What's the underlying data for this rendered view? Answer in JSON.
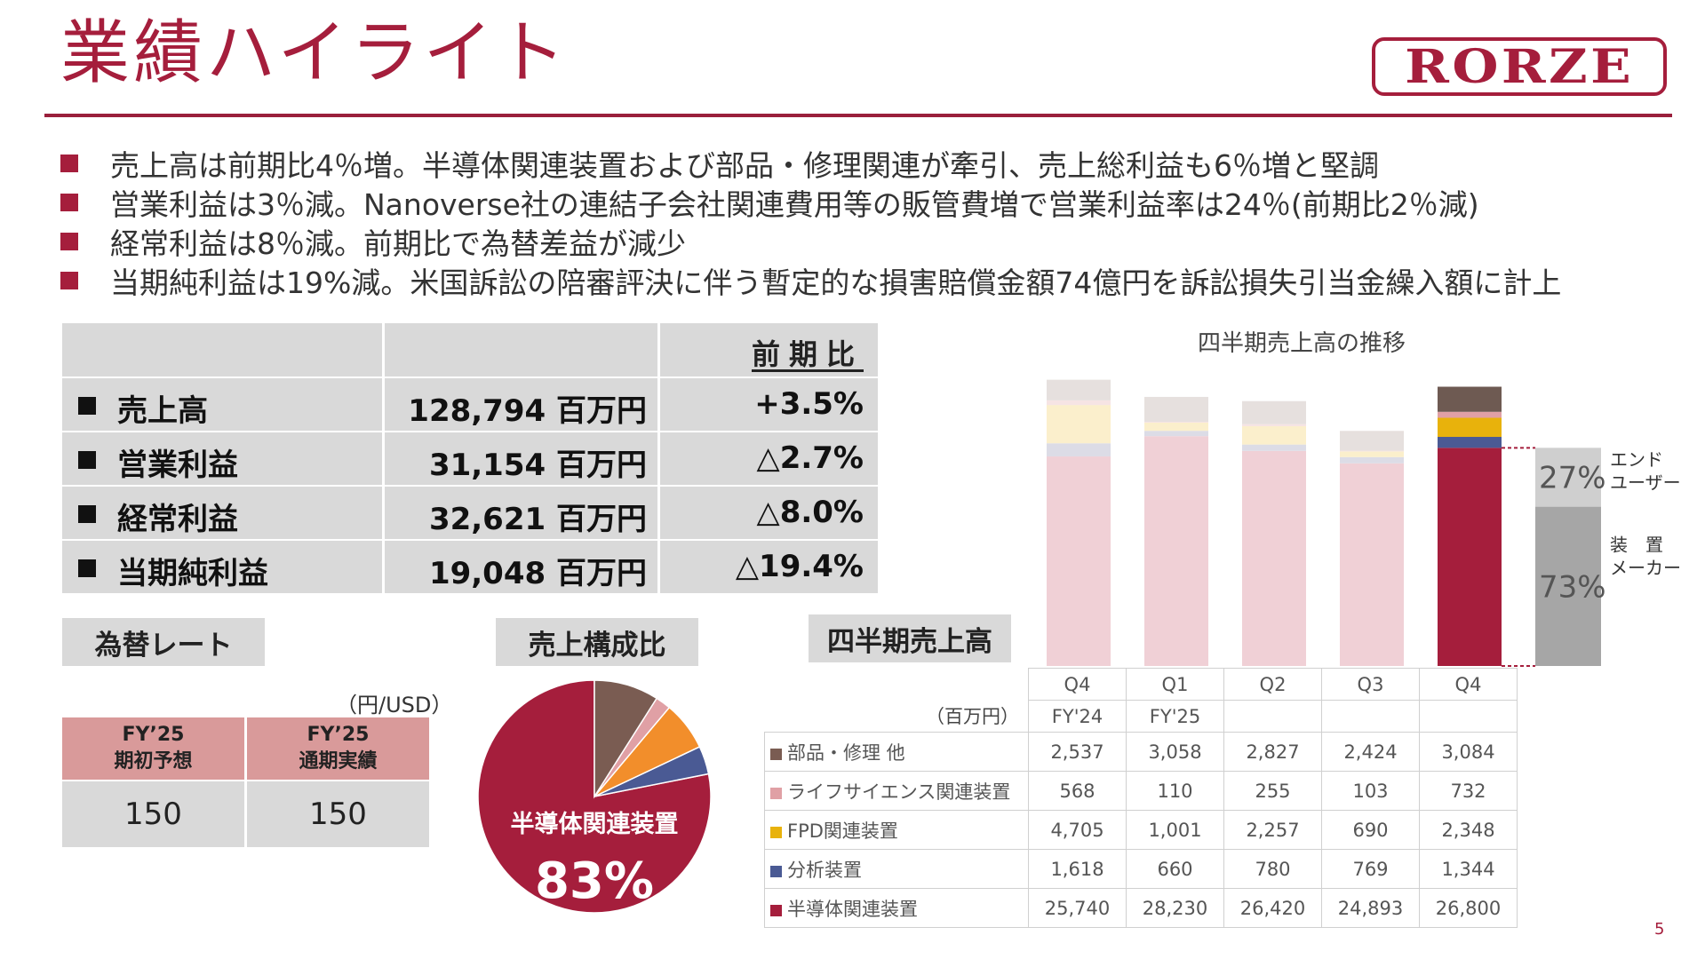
{
  "title": "業績ハイライト",
  "logo": "RORZE",
  "bullets": [
    "売上高は前期比4％増。半導体関連装置および部品・修理関連が牽引、売上総利益も6％増と堅調",
    "営業利益は3％減。Nanoverse社の連結子会社関連費用等の販管費増で営業利益率は24％(前期比2％減)",
    "経常利益は8％減。前期比で為替差益が減少",
    "当期純利益は19%減。米国訴訟の陪審評決に伴う暫定的な損害賠償金額74億円を訴訟損失引当金繰入額に計上"
  ],
  "summary": {
    "header": "前期比",
    "rows": [
      {
        "label": "売上高",
        "value": "128,794 百万円",
        "change": "+3.5%"
      },
      {
        "label": "営業利益",
        "value": "31,154 百万円",
        "change": "△2.7%"
      },
      {
        "label": "経常利益",
        "value": "32,621 百万円",
        "change": "△8.0%"
      },
      {
        "label": "当期純利益",
        "value": "19,048 百万円",
        "change": "△19.4%"
      }
    ]
  },
  "fx": {
    "tag": "為替レート",
    "unit": "（円/USD）",
    "col1_line1": "FY’25",
    "col1_line2": "期初予想",
    "col2_line1": "FY’25",
    "col2_line2": "通期実績",
    "col1_value": "150",
    "col2_value": "150"
  },
  "composition": {
    "tag": "売上構成比",
    "main_label": "半導体関連装置",
    "main_percent": "83%"
  },
  "quarterly": {
    "tag": "四半期売上高",
    "chart_title": "四半期売上高の推移",
    "unit": "（百万円）",
    "columns": [
      {
        "q": "Q4",
        "fy": "FY'24"
      },
      {
        "q": "Q1",
        "fy": "FY'25"
      },
      {
        "q": "Q2",
        "fy": ""
      },
      {
        "q": "Q3",
        "fy": ""
      },
      {
        "q": "Q4",
        "fy": ""
      }
    ],
    "rows": [
      {
        "label": "部品・修理 他",
        "color": "#7a5c52",
        "values": [
          "2,537",
          "3,058",
          "2,827",
          "2,424",
          "3,084"
        ]
      },
      {
        "label": "ライフサイエンス関連装置",
        "color": "#e0a0a5",
        "values": [
          "568",
          "110",
          "255",
          "103",
          "732"
        ]
      },
      {
        "label": "FPD関連装置",
        "color": "#e8b20c",
        "values": [
          "4,705",
          "1,001",
          "2,257",
          "690",
          "2,348"
        ]
      },
      {
        "label": "分析装置",
        "color": "#4a5a94",
        "values": [
          "1,618",
          "660",
          "780",
          "769",
          "1,344"
        ]
      },
      {
        "label": "半導体関連装置",
        "color": "#a51e3c",
        "values": [
          "25,740",
          "28,230",
          "26,420",
          "24,893",
          "26,800"
        ]
      }
    ],
    "enduser": {
      "pct": "27%",
      "label1": "エンド",
      "label2": "ユーザー"
    },
    "maker": {
      "pct": "73%",
      "label1": "装　置",
      "label2": "メーカー"
    }
  },
  "chart_data": [
    {
      "type": "bar",
      "stacked": true,
      "title": "四半期売上高の推移",
      "categories": [
        "Q4 FY'24",
        "Q1 FY'25",
        "Q2",
        "Q3",
        "Q4"
      ],
      "series": [
        {
          "name": "半導体関連装置",
          "values": [
            25740,
            28230,
            26420,
            24893,
            26800
          ]
        },
        {
          "name": "分析装置",
          "values": [
            1618,
            660,
            780,
            769,
            1344
          ]
        },
        {
          "name": "FPD関連装置",
          "values": [
            4705,
            1001,
            2257,
            690,
            2348
          ]
        },
        {
          "name": "ライフサイエンス関連装置",
          "values": [
            568,
            110,
            255,
            103,
            732
          ]
        },
        {
          "name": "部品・修理 他",
          "values": [
            2537,
            3058,
            2827,
            2424,
            3084
          ]
        }
      ],
      "colors_faded": [
        "#f0d0d6",
        "#dcdce6",
        "#fbefcc",
        "#f6e4e4",
        "#e6e0de"
      ],
      "colors_highlight": [
        "#a51e3c",
        "#4a5a94",
        "#e8b20c",
        "#e0a0a5",
        "#6e5a52"
      ],
      "split": {
        "enduser": 27,
        "maker": 73
      },
      "ylim": [
        0,
        36000
      ]
    },
    {
      "type": "pie",
      "title": "売上構成比",
      "categories": [
        "半導体関連装置",
        "分析装置",
        "FPD関連装置",
        "ライフサイエンス関連装置",
        "部品・修理 他"
      ],
      "values": [
        26800,
        1344,
        2348,
        732,
        3084
      ],
      "colors": [
        "#a51e3c",
        "#4a5a94",
        "#f28e2b",
        "#e0a0a5",
        "#7a5c52"
      ]
    }
  ]
}
